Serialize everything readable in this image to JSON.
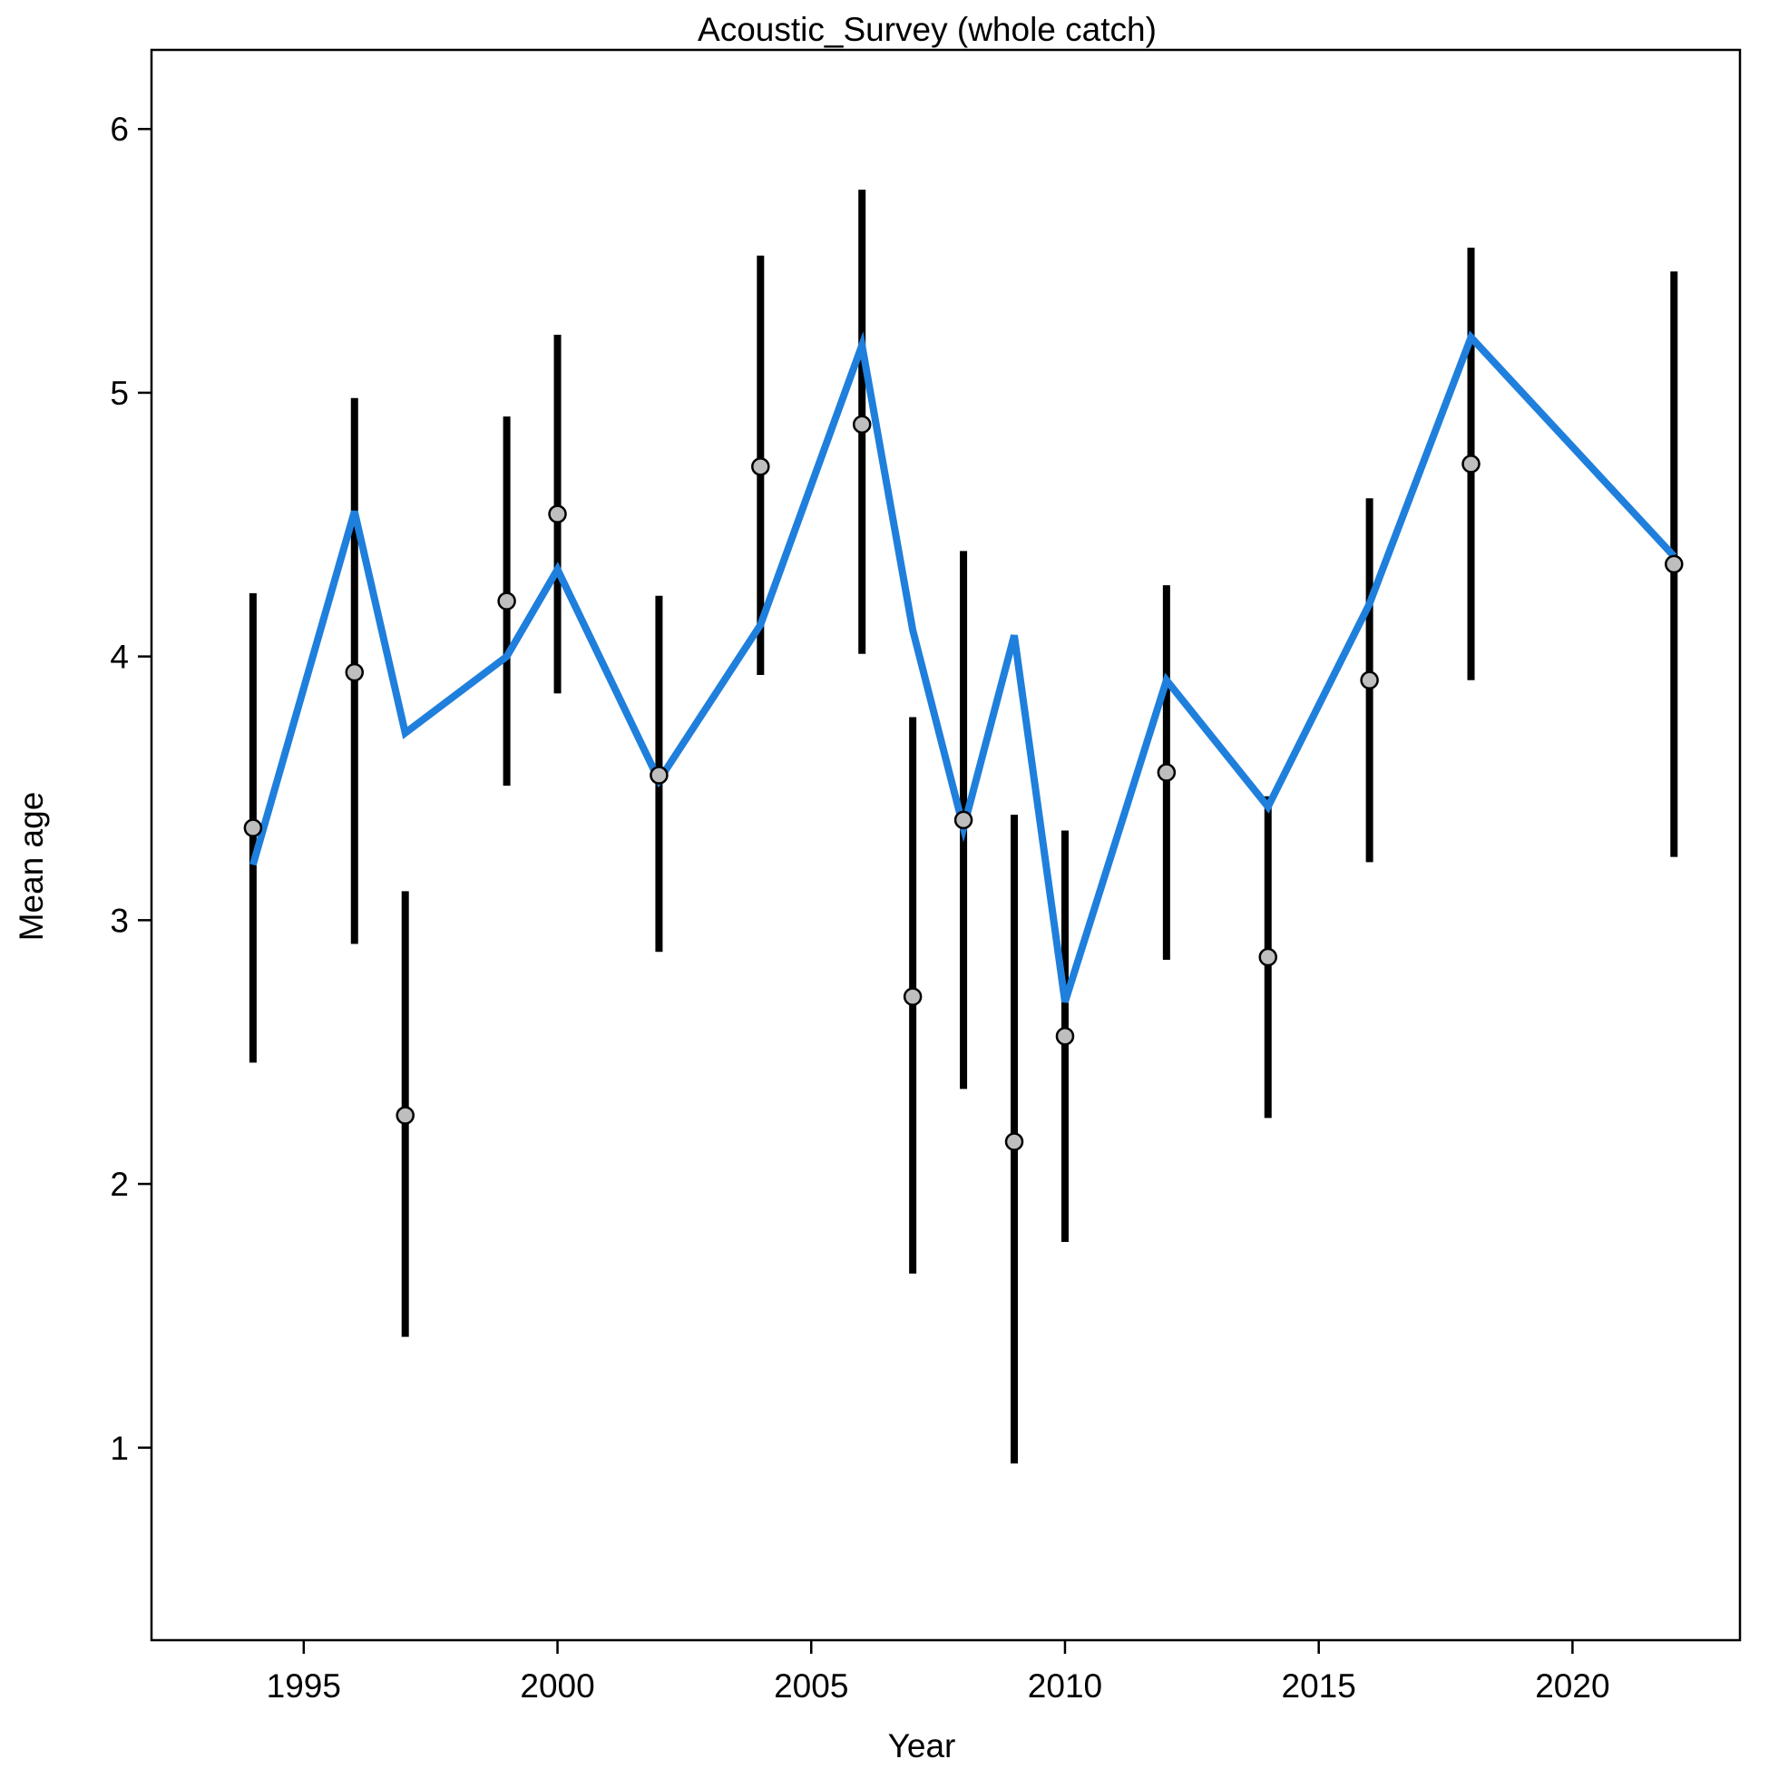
{
  "chart_data": {
    "type": "line",
    "title": "Acoustic_Survey (whole catch)",
    "xlabel": "Year",
    "ylabel": "Mean age",
    "xlim": [
      1992,
      2023.3
    ],
    "ylim": [
      0.27,
      6.3
    ],
    "x_ticks": [
      1995,
      2000,
      2005,
      2010,
      2015,
      2020
    ],
    "y_ticks": [
      1,
      2,
      3,
      4,
      5,
      6
    ],
    "grid": false,
    "legend": "none",
    "series": [
      {
        "type": "errorbar-points",
        "color": "#000000",
        "marker_fill": "#bebebe",
        "points": [
          {
            "x": 1994,
            "y": 3.35,
            "lo": 2.46,
            "hi": 4.24
          },
          {
            "x": 1996,
            "y": 3.94,
            "lo": 2.91,
            "hi": 4.98
          },
          {
            "x": 1997,
            "y": 2.26,
            "lo": 1.42,
            "hi": 3.11
          },
          {
            "x": 1999,
            "y": 4.21,
            "lo": 3.51,
            "hi": 4.91
          },
          {
            "x": 2000,
            "y": 4.54,
            "lo": 3.86,
            "hi": 5.22
          },
          {
            "x": 2002,
            "y": 3.55,
            "lo": 2.88,
            "hi": 4.23
          },
          {
            "x": 2004,
            "y": 4.72,
            "lo": 3.93,
            "hi": 5.52
          },
          {
            "x": 2006,
            "y": 4.88,
            "lo": 4.01,
            "hi": 5.77
          },
          {
            "x": 2007,
            "y": 2.71,
            "lo": 1.66,
            "hi": 3.77
          },
          {
            "x": 2008,
            "y": 3.38,
            "lo": 2.36,
            "hi": 4.4
          },
          {
            "x": 2009,
            "y": 2.16,
            "lo": 0.94,
            "hi": 3.4
          },
          {
            "x": 2010,
            "y": 2.56,
            "lo": 1.78,
            "hi": 3.34
          },
          {
            "x": 2012,
            "y": 3.56,
            "lo": 2.85,
            "hi": 4.27
          },
          {
            "x": 2014,
            "y": 2.86,
            "lo": 2.25,
            "hi": 3.47
          },
          {
            "x": 2016,
            "y": 3.91,
            "lo": 3.22,
            "hi": 4.6
          },
          {
            "x": 2018,
            "y": 4.73,
            "lo": 3.91,
            "hi": 5.55
          },
          {
            "x": 2022,
            "y": 4.35,
            "lo": 3.24,
            "hi": 5.46
          }
        ]
      },
      {
        "type": "line",
        "color": "#1f7fdc",
        "x": [
          1994,
          1996,
          1997,
          1999,
          2000,
          2002,
          2004,
          2006,
          2007,
          2008,
          2009,
          2010,
          2012,
          2014,
          2016,
          2018,
          2022
        ],
        "y": [
          3.21,
          4.55,
          3.71,
          4.0,
          4.33,
          3.53,
          4.12,
          5.18,
          4.1,
          3.35,
          4.08,
          2.69,
          3.91,
          3.43,
          4.2,
          5.21,
          4.38
        ]
      }
    ]
  }
}
